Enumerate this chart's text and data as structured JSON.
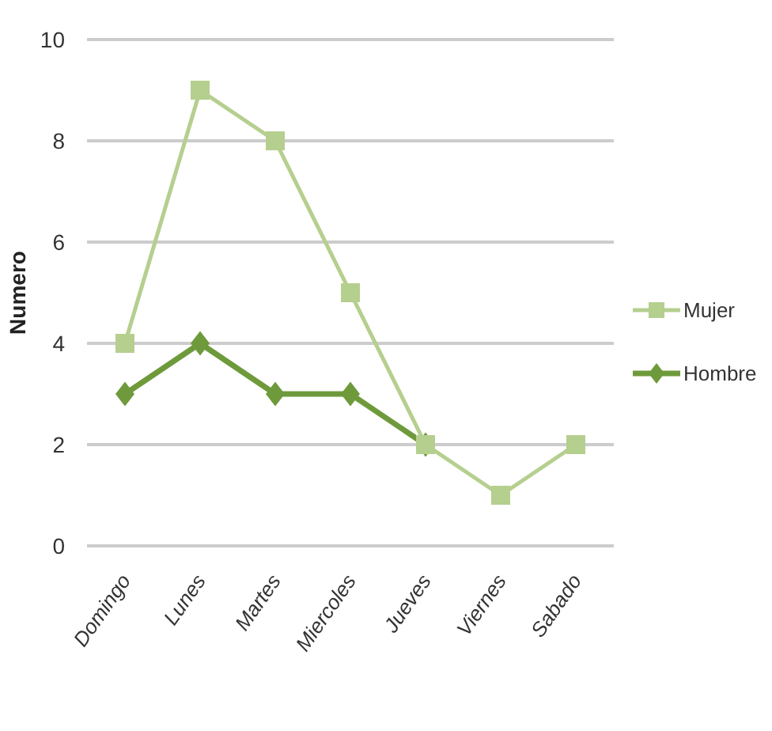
{
  "chart_data": {
    "type": "line",
    "ylabel": "Numero",
    "categories": [
      "Domingo",
      "Lunes",
      "Martes",
      "Miercoles",
      "Jueves",
      "Viernes",
      "Sabado"
    ],
    "series": [
      {
        "name": "Mujer",
        "color": "#b5cf8f",
        "values": [
          4,
          9,
          8,
          5,
          2,
          1,
          2
        ],
        "marker": "square"
      },
      {
        "name": "Hombre",
        "color": "#6e9a3c",
        "values": [
          3,
          4,
          3,
          3,
          2,
          null,
          null
        ],
        "marker": "diamond"
      }
    ],
    "ylim": [
      0,
      10
    ],
    "yticks": [
      0,
      2,
      4,
      6,
      8,
      10
    ],
    "grid": "y",
    "legend": "right"
  }
}
